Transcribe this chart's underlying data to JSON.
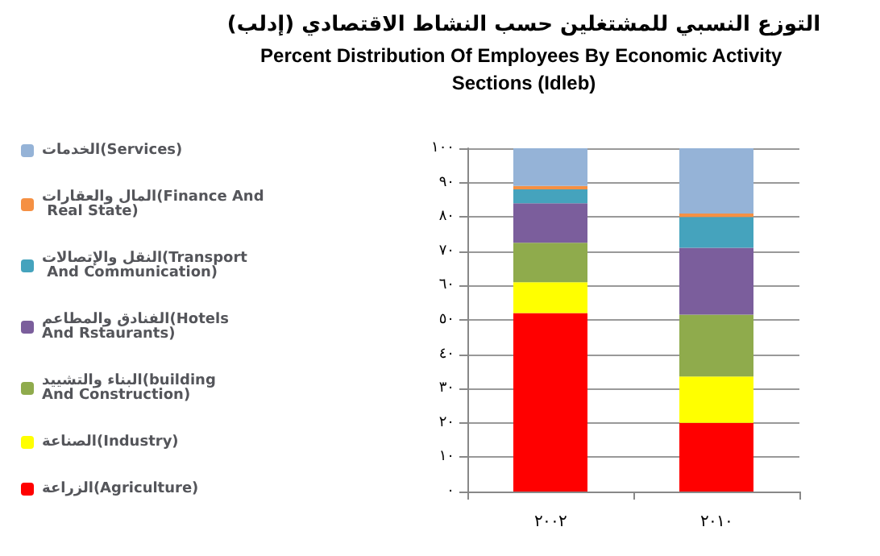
{
  "chart_data": {
    "type": "bar",
    "title": "التوزع النسبي للمشتغلين حسب النشاط الاقتصادي (إدلب)",
    "subtitle": "Percent Distribution Of Employees By Economic Activity Sections (Idleb)",
    "stacked": true,
    "categories": [
      "٢٠٠٢",
      "٢٠١٠"
    ],
    "series": [
      {
        "name": "الزراعة(Agriculture)",
        "color": "#ff0000",
        "values": [
          52,
          20
        ]
      },
      {
        "name": "الصناعة(Industry)",
        "color": "#ffff00",
        "values": [
          9,
          13.5
        ]
      },
      {
        "name": "البناء والتشييد(building And Construction)",
        "color": "#8fab4c",
        "values": [
          11.5,
          18
        ]
      },
      {
        "name": "الفنادق والمطاعم(Hotels And Rstaurants)",
        "color": "#7b5e9c",
        "values": [
          11.5,
          19.5
        ]
      },
      {
        "name": "النقل والإتصالات(Transport And Communication)",
        "color": "#45a3bd",
        "values": [
          4,
          9
        ]
      },
      {
        "name": "المال والعقارات(Finance And Real State)",
        "color": "#f59043",
        "values": [
          1,
          1
        ]
      },
      {
        "name": "الخدمات(Services)",
        "color": "#95b3d7",
        "values": [
          11,
          19
        ]
      }
    ],
    "ylim": [
      0,
      100
    ],
    "yticks": [
      {
        "value": 0,
        "label": "٠"
      },
      {
        "value": 10,
        "label": "١٠"
      },
      {
        "value": 20,
        "label": "٢٠"
      },
      {
        "value": 30,
        "label": "٣٠"
      },
      {
        "value": 40,
        "label": "٤٠"
      },
      {
        "value": 50,
        "label": "٥٠"
      },
      {
        "value": 60,
        "label": "٦٠"
      },
      {
        "value": 70,
        "label": "٧٠"
      },
      {
        "value": 80,
        "label": "٨٠"
      },
      {
        "value": 90,
        "label": "٩٠"
      },
      {
        "value": 100,
        "label": "١٠٠"
      }
    ],
    "grid": "y",
    "legend": "left"
  }
}
